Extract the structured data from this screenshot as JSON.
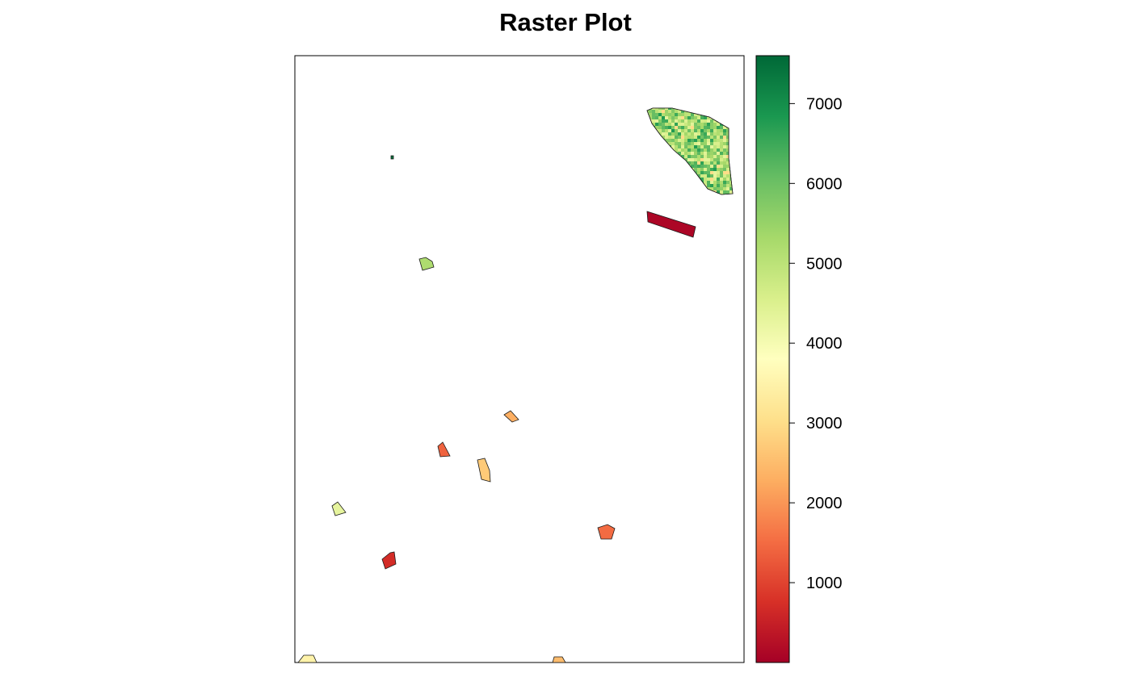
{
  "chart_data": {
    "type": "heatmap",
    "title": "Raster Plot",
    "xlabel": "",
    "ylabel": "",
    "legend": {
      "placement": "right",
      "min": 0,
      "max": 7600,
      "ticks": [
        1000,
        2000,
        3000,
        4000,
        5000,
        6000,
        7000
      ],
      "tick_labels": [
        "1000",
        "2000",
        "3000",
        "4000",
        "5000",
        "6000",
        "7000"
      ],
      "colormap": [
        "#a50026",
        "#d73027",
        "#f46d43",
        "#fdae61",
        "#fee08b",
        "#ffffbf",
        "#d9ef8b",
        "#a6d96a",
        "#66bd63",
        "#1a9850",
        "#006837"
      ]
    },
    "grid": false,
    "patches": [
      {
        "id": "ne-large-field",
        "approx_value": 5800,
        "range": [
          2500,
          7600
        ]
      },
      {
        "id": "ne-strip",
        "approx_value": 100
      },
      {
        "id": "tiny-north-speck",
        "approx_value": 7400
      },
      {
        "id": "north-small-field",
        "approx_value": 5200
      },
      {
        "id": "center-field-a",
        "approx_value": 2300
      },
      {
        "id": "center-field-b",
        "approx_value": 1400
      },
      {
        "id": "center-field-c",
        "approx_value": 2700
      },
      {
        "id": "west-field",
        "approx_value": 4300
      },
      {
        "id": "southeast-field",
        "approx_value": 1500
      },
      {
        "id": "south-field",
        "approx_value": 700
      },
      {
        "id": "sw-corner-field",
        "approx_value": 3500
      },
      {
        "id": "south-edge-field",
        "approx_value": 2500
      }
    ]
  }
}
